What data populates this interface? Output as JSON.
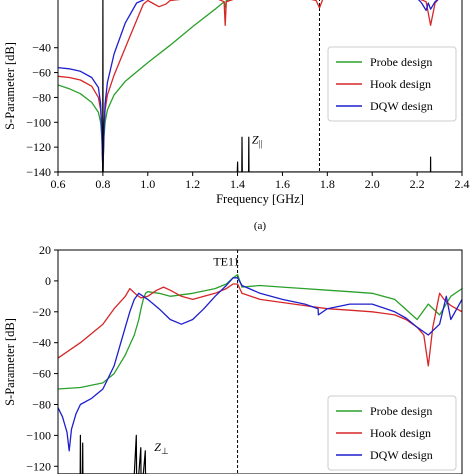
{
  "chart_data": [
    {
      "type": "line",
      "caption": "(a)",
      "xlabel": "Frequency [GHz]",
      "ylabel": "S-Parameter [dB]",
      "xlim": [
        0.6,
        2.4
      ],
      "ylim": [
        -140,
        0
      ],
      "xticks": [
        0.6,
        0.8,
        1.0,
        1.2,
        1.4,
        1.6,
        1.8,
        2.0,
        2.2,
        2.4
      ],
      "xtick_labels": [
        "0.6",
        "0.8",
        "1.0",
        "1.2",
        "1.4",
        "1.6",
        "1.8",
        "2.0",
        "2.2",
        "2.4"
      ],
      "yticks": [
        -140,
        -120,
        -100,
        -80,
        -60,
        -40
      ],
      "ytick_labels": [
        "−140",
        "−120",
        "−100",
        "−80",
        "−60",
        "−40"
      ],
      "legend_position": "center-right",
      "vline_x": 1.765,
      "annotations": [
        {
          "text": "Z",
          "sub": "||",
          "x": 1.455,
          "y": -117
        }
      ],
      "series": [
        {
          "name": "Probe design",
          "color": "#2ca02c",
          "x": [
            0.6,
            0.65,
            0.7,
            0.75,
            0.78,
            0.79,
            0.795,
            0.8,
            0.805,
            0.81,
            0.82,
            0.85,
            0.9,
            1.0,
            1.1,
            1.2,
            1.3,
            1.34,
            1.345,
            1.35,
            1.4,
            1.5,
            1.6,
            1.7,
            1.75,
            1.765,
            1.78,
            1.9,
            2.0,
            2.1,
            2.2,
            2.3,
            2.4
          ],
          "y": [
            -70,
            -73,
            -77,
            -84,
            -92,
            -100,
            -112,
            -140,
            -112,
            -100,
            -90,
            -78,
            -67,
            -52,
            -38,
            -23,
            -9,
            -3,
            -8,
            -2,
            0,
            0,
            0,
            0,
            0,
            0,
            0,
            0,
            0,
            0,
            0,
            0,
            0
          ]
        },
        {
          "name": "Hook design",
          "color": "#d62728",
          "x": [
            0.6,
            0.65,
            0.7,
            0.75,
            0.78,
            0.79,
            0.795,
            0.8,
            0.805,
            0.81,
            0.82,
            0.85,
            0.9,
            0.95,
            0.98,
            1.0,
            1.02,
            1.05,
            1.08,
            1.1,
            1.2,
            1.3,
            1.34,
            1.345,
            1.35,
            1.4,
            1.5,
            1.6,
            1.7,
            1.75,
            1.765,
            1.78,
            1.9,
            2.0,
            2.1,
            2.2,
            2.24,
            2.26,
            2.28,
            2.3,
            2.4
          ],
          "y": [
            -63,
            -64,
            -66,
            -71,
            -80,
            -90,
            -105,
            -140,
            -105,
            -90,
            -78,
            -62,
            -40,
            -18,
            -5,
            -2,
            -4,
            -7,
            -5,
            -2,
            0,
            0,
            -3,
            -22,
            -3,
            0,
            0,
            0,
            0,
            -2,
            -8,
            -1,
            0,
            0,
            0,
            0,
            -3,
            -22,
            -4,
            0,
            0
          ]
        },
        {
          "name": "DQW design",
          "color": "#1f1fcf",
          "x": [
            0.6,
            0.65,
            0.7,
            0.75,
            0.78,
            0.79,
            0.795,
            0.8,
            0.805,
            0.81,
            0.82,
            0.85,
            0.9,
            0.95,
            1.0,
            1.1,
            1.2,
            1.3,
            1.34,
            1.345,
            1.35,
            1.4,
            1.5,
            1.6,
            1.7,
            1.75,
            1.765,
            1.78,
            1.9,
            2.0,
            2.1,
            2.2,
            2.22,
            2.24,
            2.25,
            2.26,
            2.28,
            2.3,
            2.4
          ],
          "y": [
            -56,
            -57,
            -59,
            -64,
            -72,
            -85,
            -105,
            -140,
            -105,
            -85,
            -68,
            -45,
            -20,
            -4,
            0,
            0,
            0,
            0,
            0,
            0,
            0,
            0,
            0,
            0,
            0,
            0,
            0,
            0,
            0,
            0,
            0,
            0,
            -4,
            -10,
            -4,
            -9,
            -3,
            0,
            0
          ]
        },
        {
          "name": "",
          "color": "#000000",
          "x": [
            0.6,
            0.79,
            0.799,
            0.8,
            0.801,
            0.81,
            1.39,
            1.399,
            1.4,
            1.401,
            1.41,
            1.419,
            1.42,
            1.421,
            1.43,
            1.449,
            1.45,
            1.451,
            1.46,
            2.25,
            2.2595,
            2.26,
            2.2605,
            2.27,
            2.4
          ],
          "y": [
            -140,
            -140,
            -140,
            0,
            -140,
            -140,
            -140,
            -140,
            -132,
            -140,
            -140,
            -140,
            -112,
            -140,
            -140,
            -140,
            -112,
            -140,
            -140,
            -140,
            -140,
            -128,
            -140,
            -140,
            -140
          ]
        }
      ]
    },
    {
      "type": "line",
      "xlabel": "",
      "ylabel": "S-Parameter [dB]",
      "xlim": [
        0.6,
        2.4
      ],
      "ylim": [
        -125,
        20
      ],
      "yticks": [
        -120,
        -100,
        -80,
        -60,
        -40,
        -20,
        0,
        20
      ],
      "ytick_labels": [
        "−120",
        "−100",
        "−80",
        "−60",
        "−40",
        "−20",
        "0",
        "20"
      ],
      "legend_position": "bottom-right",
      "vline_x": 1.4,
      "annotations": [
        {
          "text": "TE11",
          "x": 1.4,
          "y": 10
        },
        {
          "text": "Z",
          "sub": "⊥",
          "x": 1.02,
          "y": -110
        }
      ],
      "series": [
        {
          "name": "Probe design",
          "color": "#2ca02c",
          "x": [
            0.6,
            0.7,
            0.8,
            0.85,
            0.9,
            0.94,
            0.96,
            0.97,
            0.98,
            0.99,
            1.0,
            1.05,
            1.1,
            1.2,
            1.3,
            1.35,
            1.38,
            1.4,
            1.42,
            1.5,
            1.6,
            1.7,
            1.8,
            1.9,
            2.0,
            2.1,
            2.2,
            2.25,
            2.3,
            2.35,
            2.4
          ],
          "y": [
            -70,
            -69,
            -66,
            -60,
            -48,
            -35,
            -25,
            -18,
            -12,
            -8,
            -7,
            -8,
            -10,
            -8,
            -5,
            -2,
            2,
            4,
            -4,
            -3,
            -4,
            -5,
            -6,
            -7,
            -8,
            -12,
            -25,
            -15,
            -22,
            -10,
            -5
          ]
        },
        {
          "name": "Hook design",
          "color": "#d62728",
          "x": [
            0.6,
            0.7,
            0.8,
            0.85,
            0.9,
            0.92,
            0.95,
            0.97,
            1.0,
            1.04,
            1.07,
            1.1,
            1.15,
            1.2,
            1.3,
            1.35,
            1.38,
            1.4,
            1.42,
            1.5,
            1.6,
            1.7,
            1.8,
            1.9,
            2.0,
            2.1,
            2.15,
            2.2,
            2.23,
            2.25,
            2.27,
            2.3,
            2.32,
            2.35,
            2.4
          ],
          "y": [
            -50,
            -40,
            -28,
            -18,
            -10,
            -5,
            -9,
            -11,
            -10,
            -6,
            -4,
            -6,
            -10,
            -12,
            -8,
            -5,
            -2,
            -2,
            -8,
            -12,
            -14,
            -16,
            -18,
            -19,
            -20,
            -22,
            -25,
            -30,
            -35,
            -55,
            -30,
            -8,
            -12,
            -16,
            -20
          ]
        },
        {
          "name": "DQW design",
          "color": "#1f1fcf",
          "x": [
            0.6,
            0.62,
            0.64,
            0.65,
            0.66,
            0.68,
            0.7,
            0.75,
            0.8,
            0.85,
            0.88,
            0.92,
            0.94,
            0.96,
            1.0,
            1.05,
            1.1,
            1.15,
            1.2,
            1.25,
            1.3,
            1.35,
            1.38,
            1.4,
            1.42,
            1.5,
            1.6,
            1.7,
            1.759,
            1.76,
            1.8,
            1.9,
            2.0,
            2.1,
            2.15,
            2.2,
            2.25,
            2.3,
            2.33,
            2.35,
            2.4
          ],
          "y": [
            -82,
            -88,
            -98,
            -110,
            -96,
            -86,
            -80,
            -76,
            -70,
            -55,
            -40,
            -20,
            -12,
            -8,
            -12,
            -18,
            -25,
            -28,
            -25,
            -18,
            -10,
            -3,
            2,
            2,
            -3,
            -8,
            -12,
            -15,
            -18,
            -22,
            -18,
            -15,
            -15,
            -20,
            -24,
            -30,
            -35,
            -28,
            -10,
            -25,
            -12
          ]
        },
        {
          "name": "",
          "color": "#000000",
          "x": [
            0.6,
            0.699,
            0.7,
            0.701,
            0.709,
            0.71,
            0.711,
            0.94,
            0.949,
            0.95,
            0.951,
            0.96,
            0.969,
            0.97,
            0.971,
            0.98,
            0.989,
            0.99,
            0.991,
            1.0
          ],
          "y": [
            -125,
            -125,
            -100,
            -125,
            -125,
            -105,
            -125,
            -125,
            -100,
            -125,
            -125,
            -125,
            -108,
            -125,
            -125,
            -125,
            -110,
            -125,
            -125,
            -125
          ]
        }
      ]
    }
  ]
}
